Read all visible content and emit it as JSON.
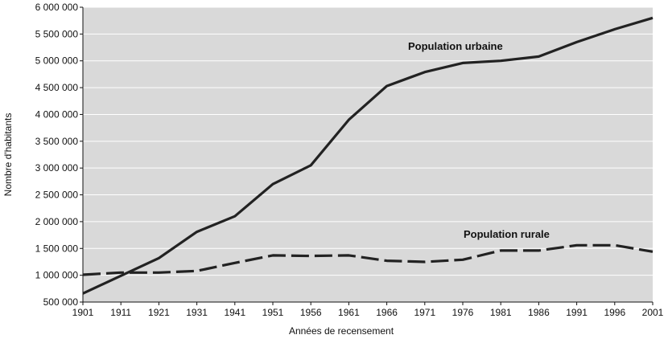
{
  "chart_data": {
    "type": "line",
    "title": "",
    "xlabel": "Années de recensement",
    "ylabel": "Nombre d'habitants",
    "x": [
      "1901",
      "1911",
      "1921",
      "1931",
      "1941",
      "1951",
      "1956",
      "1961",
      "1966",
      "1971",
      "1976",
      "1981",
      "1986",
      "1991",
      "1996",
      "2001"
    ],
    "yticks": [
      "500 000",
      "1 000 000",
      "1 500 000",
      "2 000 000",
      "2 500 000",
      "3 000 000",
      "3 500 000",
      "4 000 000",
      "4 500 000",
      "5 000 000",
      "5 500 000",
      "6 000 000"
    ],
    "ylim": [
      500000,
      6000000
    ],
    "grid": true,
    "legend": "none",
    "series": [
      {
        "name": "Population urbaine",
        "style": "solid",
        "values": [
          660000,
          990000,
          1320000,
          1810000,
          2100000,
          2700000,
          3050000,
          3900000,
          4530000,
          4790000,
          4960000,
          5000000,
          5080000,
          5350000,
          5590000,
          5800000
        ]
      },
      {
        "name": "Population rurale",
        "style": "dashed",
        "values": [
          1010000,
          1050000,
          1050000,
          1080000,
          1230000,
          1370000,
          1360000,
          1370000,
          1270000,
          1250000,
          1290000,
          1460000,
          1460000,
          1560000,
          1560000,
          1440000
        ]
      }
    ],
    "colors": {
      "plot_bg": "#d9d9d9",
      "grid": "#ffffff",
      "line": "#222222"
    }
  }
}
